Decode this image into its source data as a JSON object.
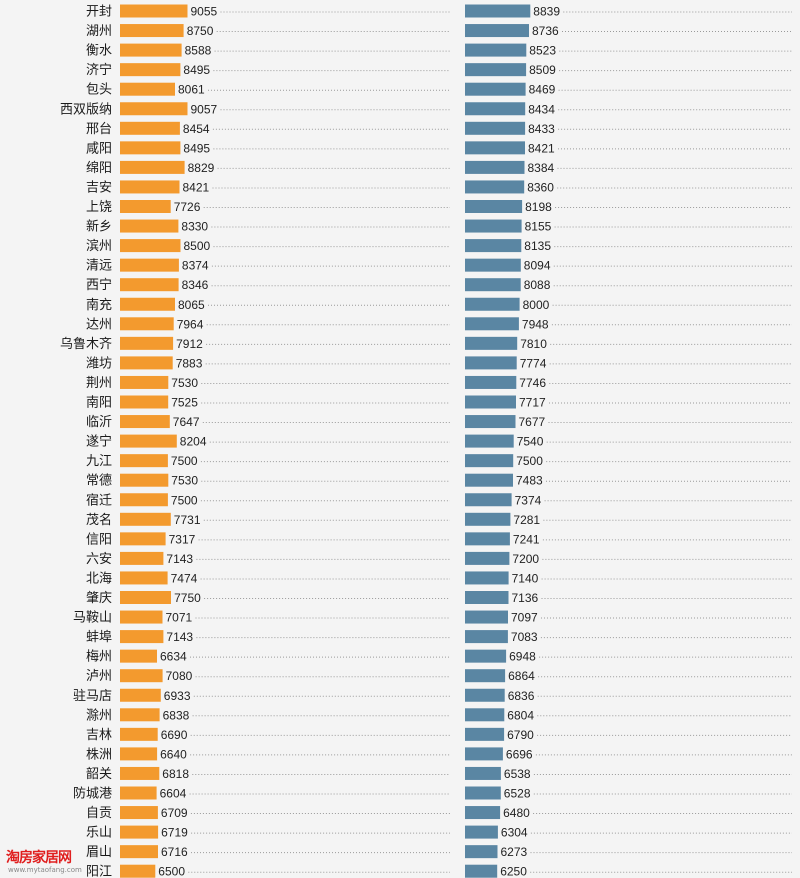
{
  "chart_data": {
    "type": "bar",
    "orientation": "horizontal",
    "categories": [
      "开封",
      "湖州",
      "衡水",
      "济宁",
      "包头",
      "西双版纳",
      "邢台",
      "咸阳",
      "绵阳",
      "吉安",
      "上饶",
      "新乡",
      "滨州",
      "清远",
      "西宁",
      "南充",
      "达州",
      "乌鲁木齐",
      "潍坊",
      "荆州",
      "南阳",
      "临沂",
      "遂宁",
      "九江",
      "常德",
      "宿迁",
      "茂名",
      "信阳",
      "六安",
      "北海",
      "肇庆",
      "马鞍山",
      "蚌埠",
      "梅州",
      "泸州",
      "驻马店",
      "滁州",
      "吉林",
      "株洲",
      "韶关",
      "防城港",
      "自贡",
      "乐山",
      "眉山",
      "阳江"
    ],
    "series": [
      {
        "color": "#f39a2e",
        "values": [
          9055,
          8750,
          8588,
          8495,
          8061,
          9057,
          8454,
          8495,
          8829,
          8421,
          7726,
          8330,
          8500,
          8374,
          8346,
          8065,
          7964,
          7912,
          7883,
          7530,
          7525,
          7647,
          8204,
          7500,
          7530,
          7500,
          7731,
          7317,
          7143,
          7474,
          7750,
          7071,
          7143,
          6634,
          7080,
          6933,
          6838,
          6690,
          6640,
          6818,
          6604,
          6709,
          6719,
          6716,
          6500
        ]
      },
      {
        "color": "#5a86a3",
        "values": [
          8839,
          8736,
          8523,
          8509,
          8469,
          8434,
          8433,
          8421,
          8384,
          8360,
          8198,
          8155,
          8135,
          8094,
          8088,
          8000,
          7948,
          7810,
          7774,
          7746,
          7717,
          7677,
          7540,
          7500,
          7483,
          7374,
          7281,
          7241,
          7200,
          7140,
          7136,
          7097,
          7083,
          6948,
          6864,
          6836,
          6804,
          6790,
          6696,
          6538,
          6528,
          6480,
          6304,
          6273,
          6250
        ]
      }
    ],
    "title": "",
    "xlabel": "",
    "ylabel": "",
    "grid": false,
    "legend": "none"
  },
  "watermark": {
    "main": "淘房家居网",
    "sub": "www.mytaofang.com"
  }
}
